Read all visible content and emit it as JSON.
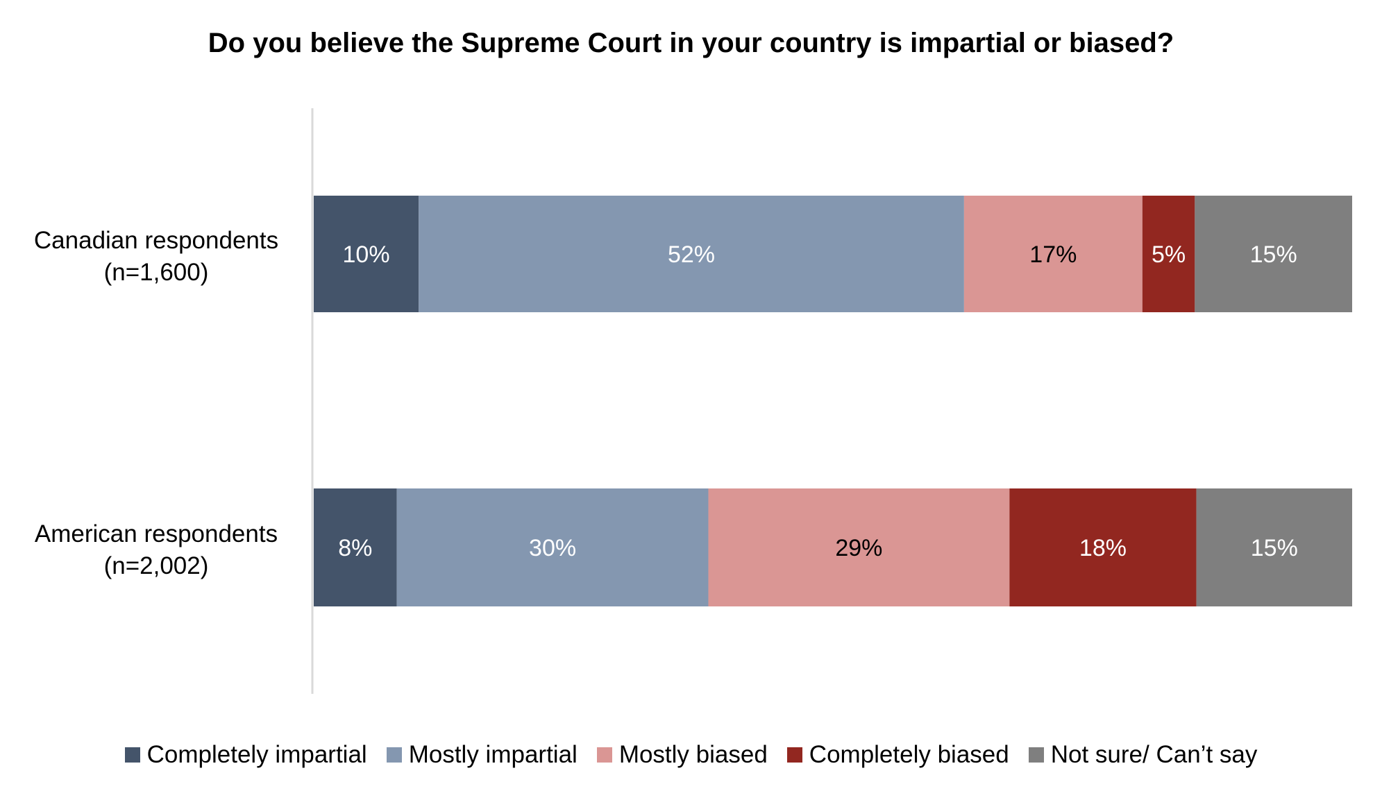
{
  "chart_data": {
    "type": "bar",
    "orientation": "horizontal",
    "stacked": true,
    "title": "Do you believe the Supreme Court in your country is impartial or biased?",
    "categories": [
      [
        "Canadian respondents",
        "(n=1,600)"
      ],
      [
        "American respondents",
        "(n=2,002)"
      ]
    ],
    "series": [
      {
        "name": "Completely impartial",
        "values": [
          10,
          8
        ],
        "color": "#44546A",
        "label_color": "#ffffff"
      },
      {
        "name": "Mostly impartial",
        "values": [
          52,
          30
        ],
        "color": "#8497B0",
        "label_color": "#ffffff"
      },
      {
        "name": "Mostly biased",
        "values": [
          17,
          29
        ],
        "color": "#DA9694",
        "label_color": "#000000"
      },
      {
        "name": "Completely biased",
        "values": [
          5,
          18
        ],
        "color": "#922720",
        "label_color": "#ffffff"
      },
      {
        "name": "Not sure/ Can’t say",
        "values": [
          15,
          15
        ],
        "color": "#7F7F7F",
        "label_color": "#ffffff"
      }
    ],
    "value_suffix": "%",
    "grid": false,
    "legend_position": "bottom"
  }
}
